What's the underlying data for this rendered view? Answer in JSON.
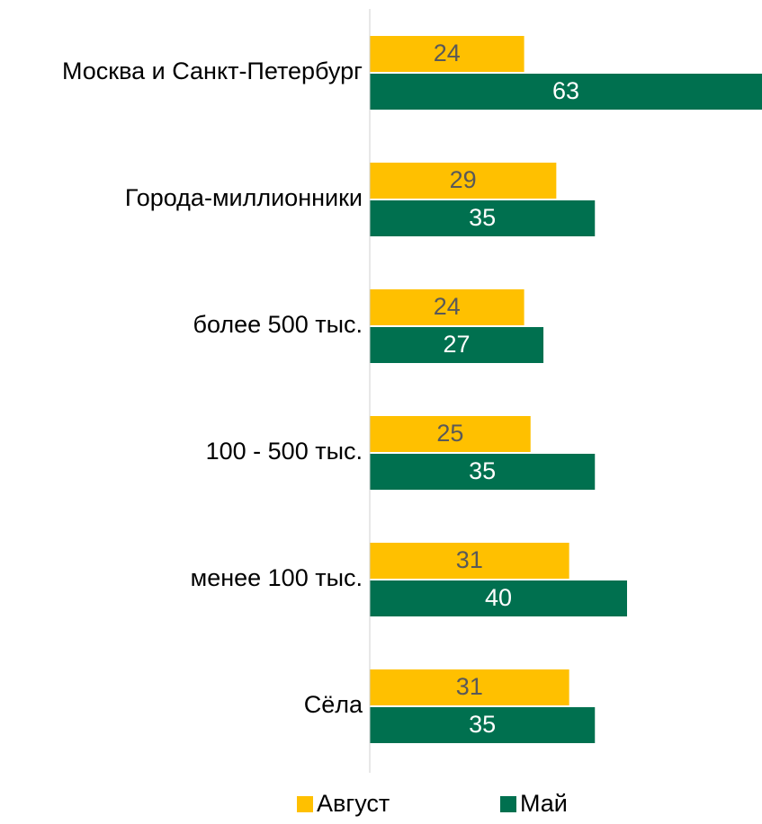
{
  "chart_data": {
    "type": "bar",
    "orientation": "horizontal",
    "categories": [
      "Москва и Санкт-Петербург",
      "Города-миллионники",
      "более 500 тыс.",
      "100 - 500 тыс.",
      "менее 100 тыс.",
      "Сёла"
    ],
    "series": [
      {
        "name": "Август",
        "color": "#FFC000",
        "values": [
          24,
          29,
          24,
          25,
          31,
          31
        ]
      },
      {
        "name": "Май",
        "color": "#00704F",
        "values": [
          63,
          35,
          27,
          35,
          40,
          35
        ]
      }
    ],
    "xlim": [
      0,
      60
    ],
    "legend": "bottom"
  }
}
